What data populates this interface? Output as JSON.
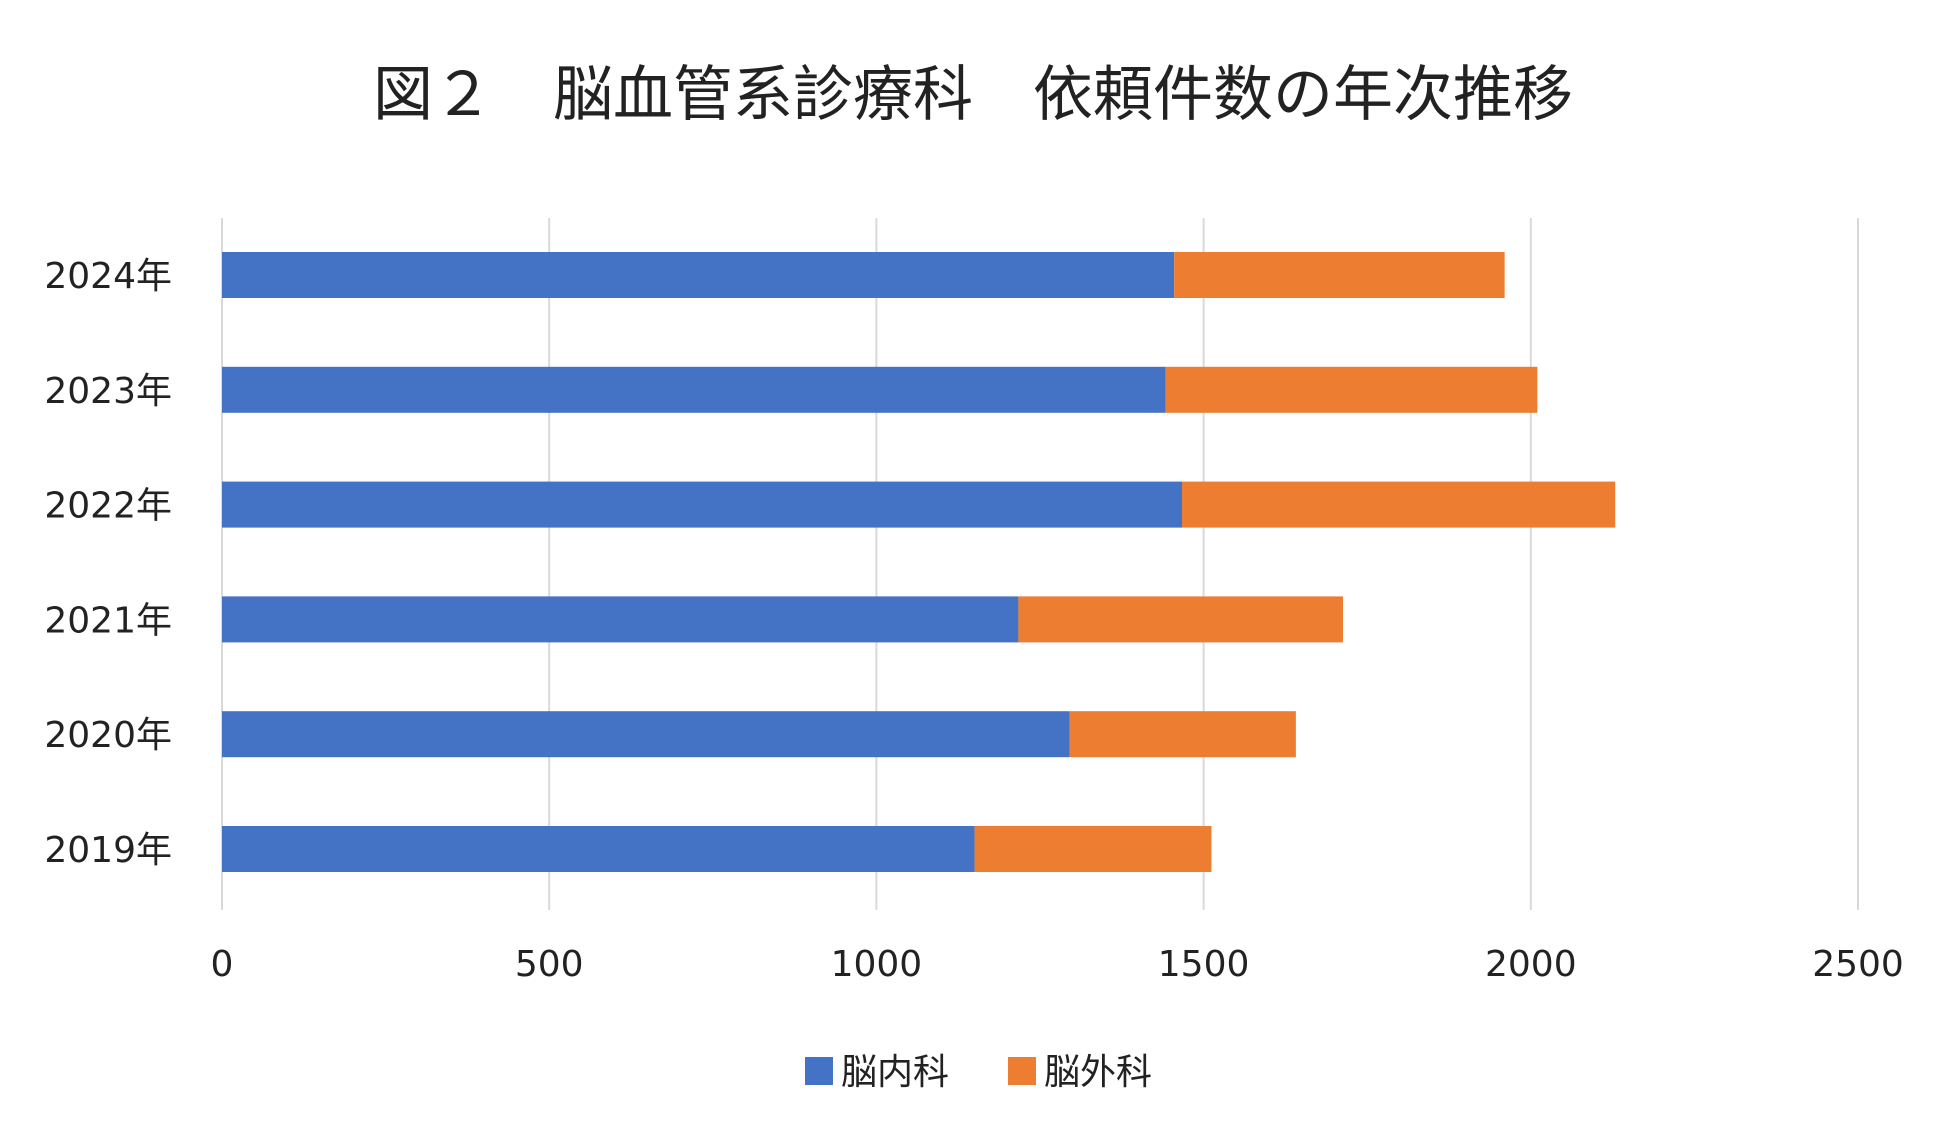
{
  "chart_data": {
    "type": "bar",
    "orientation": "horizontal",
    "stacked": true,
    "title": "図２　脳血管系診療科　依頼件数の年次推移",
    "categories": [
      "2024年",
      "2023年",
      "2022年",
      "2021年",
      "2020年",
      "2019年"
    ],
    "series": [
      {
        "name": "脳内科",
        "color": "#4472c4",
        "values": [
          1455,
          1442,
          1467,
          1217,
          1295,
          1150
        ]
      },
      {
        "name": "脳外科",
        "color": "#ed7d31",
        "values": [
          505,
          568,
          662,
          496,
          346,
          362
        ]
      }
    ],
    "xlim": [
      0,
      2500
    ],
    "xticks": [
      "0",
      "500",
      "1000",
      "1500",
      "2000",
      "2500"
    ],
    "grid": true,
    "legend": "bottom"
  }
}
